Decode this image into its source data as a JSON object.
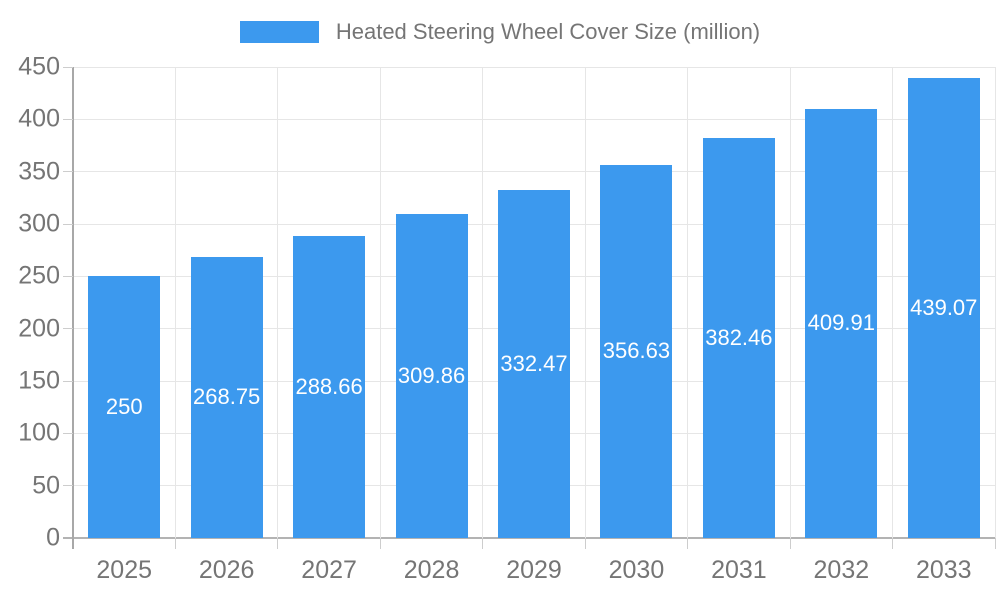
{
  "colors": {
    "bar": "#3c99ee",
    "bar_label": "#ffffff",
    "axis_text": "#757575",
    "grid": "#e6e6e6",
    "axis_line": "#a8a8a8",
    "baseline": "#b3b3b3",
    "tick": "#cdcdcd",
    "background": "#ffffff"
  },
  "chart_data": {
    "type": "bar",
    "title": "",
    "legend": "Heated Steering Wheel Cover Size (million)",
    "legend_position": "top",
    "grid": true,
    "categories": [
      "2025",
      "2026",
      "2027",
      "2028",
      "2029",
      "2030",
      "2031",
      "2032",
      "2033"
    ],
    "series": [
      {
        "name": "Heated Steering Wheel Cover Size (million)",
        "values": [
          250,
          268.75,
          288.66,
          309.86,
          332.47,
          356.63,
          382.46,
          409.91,
          439.07
        ]
      }
    ],
    "value_labels": [
      "250",
      "268.75",
      "288.66",
      "309.86",
      "332.47",
      "356.63",
      "382.46",
      "409.91",
      "439.07"
    ],
    "xlabel": "",
    "ylabel": "",
    "ylim": [
      0,
      450
    ],
    "yticks": [
      0,
      50,
      100,
      150,
      200,
      250,
      300,
      350,
      400,
      450
    ]
  }
}
